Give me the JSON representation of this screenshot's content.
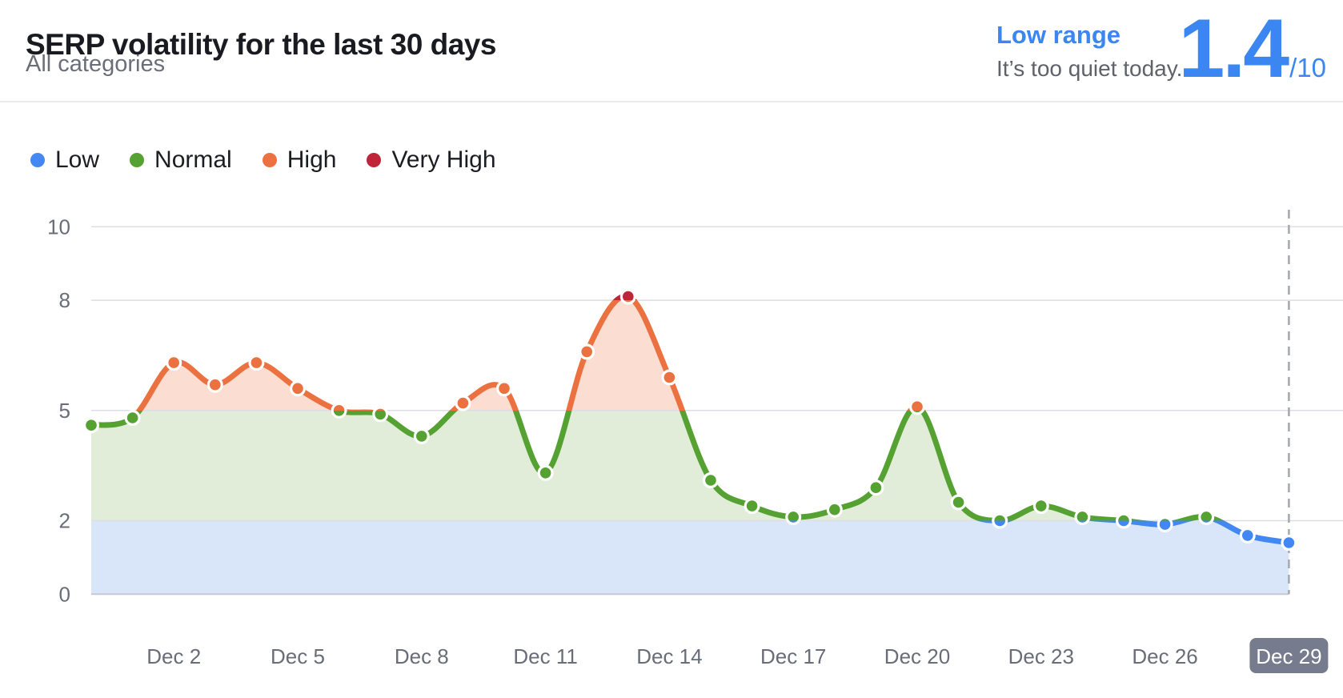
{
  "header": {
    "title": "SERP volatility for the last 30 days",
    "subtitle": "All categories"
  },
  "status": {
    "range_label": "Low range",
    "message": "It’s too quiet today.",
    "score": "1.4",
    "score_suffix": "/10",
    "accent_color": "#3b86f0"
  },
  "legend": [
    {
      "label": "Low",
      "color": "#4287f2"
    },
    {
      "label": "Normal",
      "color": "#55a132"
    },
    {
      "label": "High",
      "color": "#ec7140"
    },
    {
      "label": "Very High",
      "color": "#bf2438"
    }
  ],
  "chart_data": {
    "type": "area",
    "title": "SERP volatility for the last 30 days",
    "x": [
      "Nov 30",
      "Dec 1",
      "Dec 2",
      "Dec 3",
      "Dec 4",
      "Dec 5",
      "Dec 6",
      "Dec 7",
      "Dec 8",
      "Dec 9",
      "Dec 10",
      "Dec 11",
      "Dec 12",
      "Dec 13",
      "Dec 14",
      "Dec 15",
      "Dec 16",
      "Dec 17",
      "Dec 18",
      "Dec 19",
      "Dec 20",
      "Dec 21",
      "Dec 22",
      "Dec 23",
      "Dec 24",
      "Dec 25",
      "Dec 26",
      "Dec 27",
      "Dec 28",
      "Dec 29"
    ],
    "values": [
      4.6,
      4.8,
      6.3,
      5.7,
      6.3,
      5.6,
      5.0,
      4.9,
      4.3,
      5.2,
      5.6,
      3.3,
      6.6,
      8.1,
      5.9,
      3.1,
      2.4,
      2.1,
      2.3,
      2.9,
      5.1,
      2.5,
      2.0,
      2.4,
      2.1,
      2.0,
      1.9,
      2.1,
      1.6,
      1.4
    ],
    "x_tick_labels": [
      "Dec 2",
      "Dec 5",
      "Dec 8",
      "Dec 11",
      "Dec 14",
      "Dec 17",
      "Dec 20",
      "Dec 23",
      "Dec 26",
      "Dec 29"
    ],
    "highlighted_tick": "Dec 29",
    "y_ticks": [
      "0",
      "2",
      "5",
      "8",
      "10"
    ],
    "ylim": [
      0,
      10
    ],
    "grid": true,
    "legend_position": "top-left",
    "bands": {
      "low": [
        0,
        2
      ],
      "normal": [
        2,
        5
      ],
      "high": [
        5,
        8
      ],
      "very_high": [
        8,
        10
      ]
    },
    "line_colors": {
      "low": "#4287f2",
      "normal": "#55a132",
      "high": "#ec7140",
      "very_high": "#bf2438"
    },
    "band_fill_colors": {
      "low": "#d9e6f9",
      "normal": "#e1ecd9",
      "high": "#fbddd1",
      "very_high": "#f6d4cb"
    },
    "grid_color": "#dcdee3",
    "baseline_color": "#c5cad1",
    "axis_label_color": "#696d77",
    "dashed_cursor_color": "#a6aab2",
    "highlight_badge_color": "#767c8d",
    "highlight_badge_text_color": "#ffffff"
  }
}
